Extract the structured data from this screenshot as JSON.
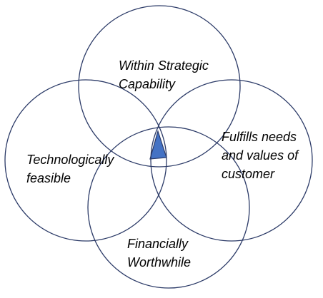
{
  "diagram": {
    "type": "venn",
    "outline_color": "#2b3a67",
    "highlight_color": "#4472c4",
    "circles": [
      {
        "id": "top",
        "label_lines": [
          "Within Strategic",
          "Capability"
        ]
      },
      {
        "id": "left",
        "label_lines": [
          "Technologically",
          "feasible"
        ]
      },
      {
        "id": "right",
        "label_lines": [
          "Fulfills needs",
          "and values of",
          "customer"
        ]
      },
      {
        "id": "bottom",
        "label_lines": [
          "Financially",
          "Worthwhile"
        ]
      }
    ],
    "highlight": "intersection of all four circles"
  }
}
